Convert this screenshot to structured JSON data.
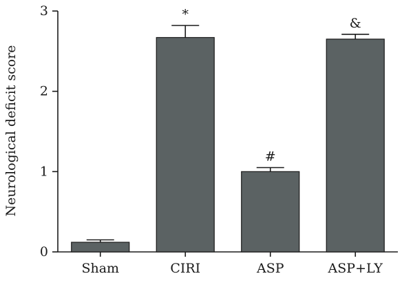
{
  "chart_data": {
    "type": "bar",
    "categories": [
      "Sham",
      "CIRI",
      "ASP",
      "ASP+LY"
    ],
    "values": [
      0.12,
      2.67,
      1.0,
      2.65
    ],
    "errors": [
      0.03,
      0.15,
      0.05,
      0.06
    ],
    "annotations": [
      "",
      "*",
      "#",
      "&"
    ],
    "title": "",
    "xlabel": "",
    "ylabel": "Neurological deficit score",
    "ylim": [
      0,
      3
    ],
    "yticks": [
      0,
      1,
      2,
      3
    ],
    "grid": false,
    "colors": {
      "bar": "#5b6263",
      "axis": "#1a1a1a"
    }
  }
}
